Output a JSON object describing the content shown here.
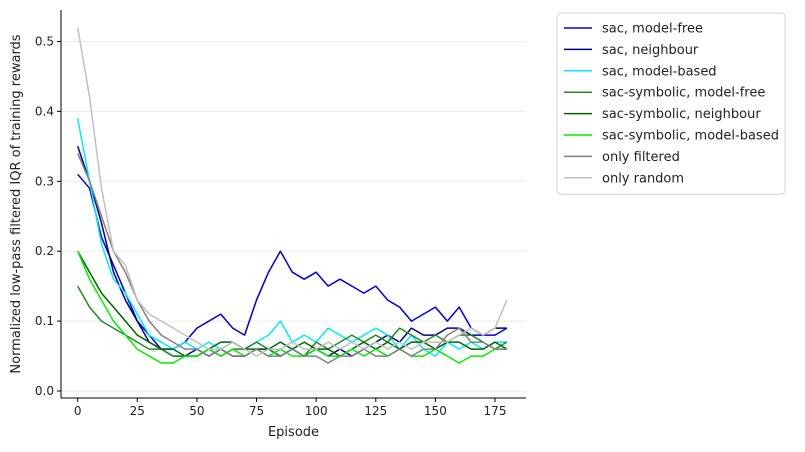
{
  "chart_data": {
    "type": "line",
    "title": "",
    "xlabel": "Episode",
    "ylabel": "Normalized low-pass filtered IQR of training rewards",
    "xlim": [
      -7,
      188
    ],
    "ylim": [
      -0.01,
      0.545
    ],
    "xticks": [
      0,
      25,
      50,
      75,
      100,
      125,
      150,
      175
    ],
    "yticks": [
      0.0,
      0.1,
      0.2,
      0.3,
      0.4,
      0.5
    ],
    "ytick_labels": [
      "0.0",
      "0.1",
      "0.2",
      "0.3",
      "0.4",
      "0.5"
    ],
    "grid": "horizontal, light",
    "legend_position": "outside-right-top",
    "series": [
      {
        "name": "sac, model-free",
        "color": "#0000dd",
        "width": 1.5,
        "x": [
          0,
          5,
          10,
          15,
          20,
          25,
          30,
          35,
          40,
          45,
          50,
          55,
          60,
          65,
          70,
          75,
          80,
          85,
          90,
          95,
          100,
          105,
          110,
          115,
          120,
          125,
          130,
          135,
          140,
          145,
          150,
          155,
          160,
          165,
          170,
          175,
          180
        ],
        "y": [
          0.31,
          0.29,
          0.22,
          0.18,
          0.14,
          0.1,
          0.08,
          0.06,
          0.06,
          0.07,
          0.09,
          0.1,
          0.11,
          0.09,
          0.08,
          0.13,
          0.17,
          0.2,
          0.17,
          0.16,
          0.17,
          0.15,
          0.16,
          0.15,
          0.14,
          0.15,
          0.13,
          0.12,
          0.1,
          0.11,
          0.12,
          0.1,
          0.12,
          0.09,
          0.08,
          0.08,
          0.09
        ]
      },
      {
        "name": "sac, neighbour",
        "color": "#00008b",
        "width": 1.5,
        "x": [
          0,
          5,
          10,
          15,
          20,
          25,
          30,
          35,
          40,
          45,
          50,
          55,
          60,
          65,
          70,
          75,
          80,
          85,
          90,
          95,
          100,
          105,
          110,
          115,
          120,
          125,
          130,
          135,
          140,
          145,
          150,
          155,
          160,
          165,
          170,
          175,
          180
        ],
        "y": [
          0.35,
          0.3,
          0.24,
          0.17,
          0.13,
          0.1,
          0.07,
          0.06,
          0.05,
          0.05,
          0.06,
          0.05,
          0.06,
          0.05,
          0.05,
          0.06,
          0.06,
          0.05,
          0.06,
          0.05,
          0.06,
          0.05,
          0.06,
          0.05,
          0.06,
          0.07,
          0.08,
          0.07,
          0.09,
          0.08,
          0.08,
          0.09,
          0.09,
          0.08,
          0.08,
          0.09,
          0.09
        ]
      },
      {
        "name": "sac, model-based",
        "color": "#00eaff",
        "width": 1.5,
        "x": [
          0,
          5,
          10,
          15,
          20,
          25,
          30,
          35,
          40,
          45,
          50,
          55,
          60,
          65,
          70,
          75,
          80,
          85,
          90,
          95,
          100,
          105,
          110,
          115,
          120,
          125,
          130,
          135,
          140,
          145,
          150,
          155,
          160,
          165,
          170,
          175,
          180
        ],
        "y": [
          0.39,
          0.3,
          0.21,
          0.16,
          0.14,
          0.11,
          0.08,
          0.07,
          0.06,
          0.07,
          0.06,
          0.07,
          0.06,
          0.07,
          0.06,
          0.07,
          0.08,
          0.1,
          0.07,
          0.08,
          0.07,
          0.09,
          0.08,
          0.07,
          0.08,
          0.09,
          0.08,
          0.06,
          0.08,
          0.06,
          0.05,
          0.07,
          0.06,
          0.07,
          0.06,
          0.07,
          0.07
        ]
      },
      {
        "name": "sac-symbolic, model-free",
        "color": "#228b22",
        "width": 1.5,
        "x": [
          0,
          5,
          10,
          15,
          20,
          25,
          30,
          35,
          40,
          45,
          50,
          55,
          60,
          65,
          70,
          75,
          80,
          85,
          90,
          95,
          100,
          105,
          110,
          115,
          120,
          125,
          130,
          135,
          140,
          145,
          150,
          155,
          160,
          165,
          170,
          175,
          180
        ],
        "y": [
          0.15,
          0.12,
          0.1,
          0.09,
          0.08,
          0.07,
          0.06,
          0.06,
          0.05,
          0.05,
          0.05,
          0.06,
          0.05,
          0.06,
          0.06,
          0.07,
          0.06,
          0.05,
          0.06,
          0.05,
          0.07,
          0.06,
          0.07,
          0.08,
          0.07,
          0.08,
          0.07,
          0.09,
          0.08,
          0.07,
          0.08,
          0.07,
          0.08,
          0.08,
          0.07,
          0.06,
          0.07
        ]
      },
      {
        "name": "sac-symbolic, neighbour",
        "color": "#006400",
        "width": 1.5,
        "x": [
          0,
          5,
          10,
          15,
          20,
          25,
          30,
          35,
          40,
          45,
          50,
          55,
          60,
          65,
          70,
          75,
          80,
          85,
          90,
          95,
          100,
          105,
          110,
          115,
          120,
          125,
          130,
          135,
          140,
          145,
          150,
          155,
          160,
          165,
          170,
          175,
          180
        ],
        "y": [
          0.2,
          0.17,
          0.14,
          0.12,
          0.1,
          0.08,
          0.07,
          0.06,
          0.06,
          0.05,
          0.05,
          0.06,
          0.07,
          0.07,
          0.06,
          0.06,
          0.06,
          0.07,
          0.06,
          0.07,
          0.06,
          0.06,
          0.05,
          0.06,
          0.07,
          0.06,
          0.07,
          0.06,
          0.07,
          0.07,
          0.06,
          0.07,
          0.07,
          0.06,
          0.06,
          0.07,
          0.06
        ]
      },
      {
        "name": "sac-symbolic, model-based",
        "color": "#00ee00",
        "width": 1.5,
        "x": [
          0,
          5,
          10,
          15,
          20,
          25,
          30,
          35,
          40,
          45,
          50,
          55,
          60,
          65,
          70,
          75,
          80,
          85,
          90,
          95,
          100,
          105,
          110,
          115,
          120,
          125,
          130,
          135,
          140,
          145,
          150,
          155,
          160,
          165,
          170,
          175,
          180
        ],
        "y": [
          0.2,
          0.16,
          0.13,
          0.1,
          0.08,
          0.06,
          0.05,
          0.04,
          0.04,
          0.05,
          0.05,
          0.06,
          0.05,
          0.06,
          0.05,
          0.06,
          0.05,
          0.06,
          0.05,
          0.05,
          0.06,
          0.05,
          0.05,
          0.06,
          0.05,
          0.06,
          0.05,
          0.06,
          0.05,
          0.05,
          0.06,
          0.05,
          0.04,
          0.05,
          0.05,
          0.06,
          0.06
        ]
      },
      {
        "name": "only filtered",
        "color": "#808080",
        "width": 1.5,
        "x": [
          0,
          5,
          10,
          15,
          20,
          25,
          30,
          35,
          40,
          45,
          50,
          55,
          60,
          65,
          70,
          75,
          80,
          85,
          90,
          95,
          100,
          105,
          110,
          115,
          120,
          125,
          130,
          135,
          140,
          145,
          150,
          155,
          160,
          165,
          170,
          175,
          180
        ],
        "y": [
          0.34,
          0.3,
          0.25,
          0.2,
          0.17,
          0.13,
          0.1,
          0.08,
          0.07,
          0.06,
          0.06,
          0.05,
          0.06,
          0.05,
          0.05,
          0.06,
          0.05,
          0.05,
          0.06,
          0.05,
          0.05,
          0.04,
          0.05,
          0.05,
          0.06,
          0.05,
          0.05,
          0.06,
          0.05,
          0.06,
          0.06,
          0.08,
          0.09,
          0.07,
          0.07,
          0.06,
          0.06
        ]
      },
      {
        "name": "only random",
        "color": "#c0c0c0",
        "width": 1.5,
        "x": [
          0,
          5,
          10,
          15,
          20,
          25,
          30,
          35,
          40,
          45,
          50,
          55,
          60,
          65,
          70,
          75,
          80,
          85,
          90,
          95,
          100,
          105,
          110,
          115,
          120,
          125,
          130,
          135,
          140,
          145,
          150,
          155,
          160,
          165,
          170,
          175,
          180
        ],
        "y": [
          0.52,
          0.42,
          0.29,
          0.2,
          0.18,
          0.13,
          0.11,
          0.1,
          0.09,
          0.08,
          0.07,
          0.06,
          0.06,
          0.07,
          0.06,
          0.05,
          0.06,
          0.06,
          0.07,
          0.06,
          0.06,
          0.07,
          0.06,
          0.07,
          0.06,
          0.07,
          0.06,
          0.07,
          0.06,
          0.07,
          0.07,
          0.07,
          0.08,
          0.09,
          0.08,
          0.09,
          0.13
        ]
      }
    ]
  }
}
